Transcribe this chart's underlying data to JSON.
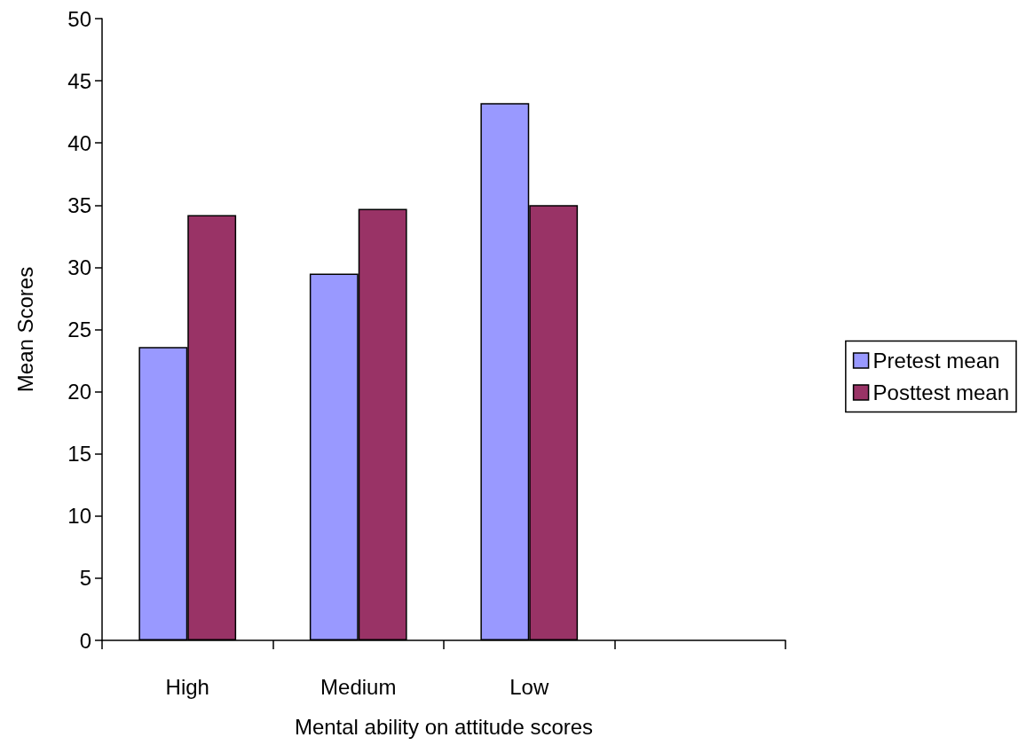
{
  "chart_data": {
    "type": "bar",
    "xlabel": "Mental ability on attitude scores",
    "ylabel": "Mean Scores",
    "categories": [
      "High",
      "Medium",
      "Low",
      null
    ],
    "series": [
      {
        "name": "Pretest mean",
        "color": "#9999ff",
        "values": [
          23.6,
          29.5,
          43.2,
          null
        ]
      },
      {
        "name": "Posttest mean",
        "color": "#993366",
        "values": [
          34.2,
          34.7,
          35.0,
          null
        ]
      }
    ],
    "ylim": [
      0,
      50
    ],
    "yticks": [
      0,
      5,
      10,
      15,
      20,
      25,
      30,
      35,
      40,
      45,
      50
    ],
    "grid": false,
    "legend": "right"
  }
}
